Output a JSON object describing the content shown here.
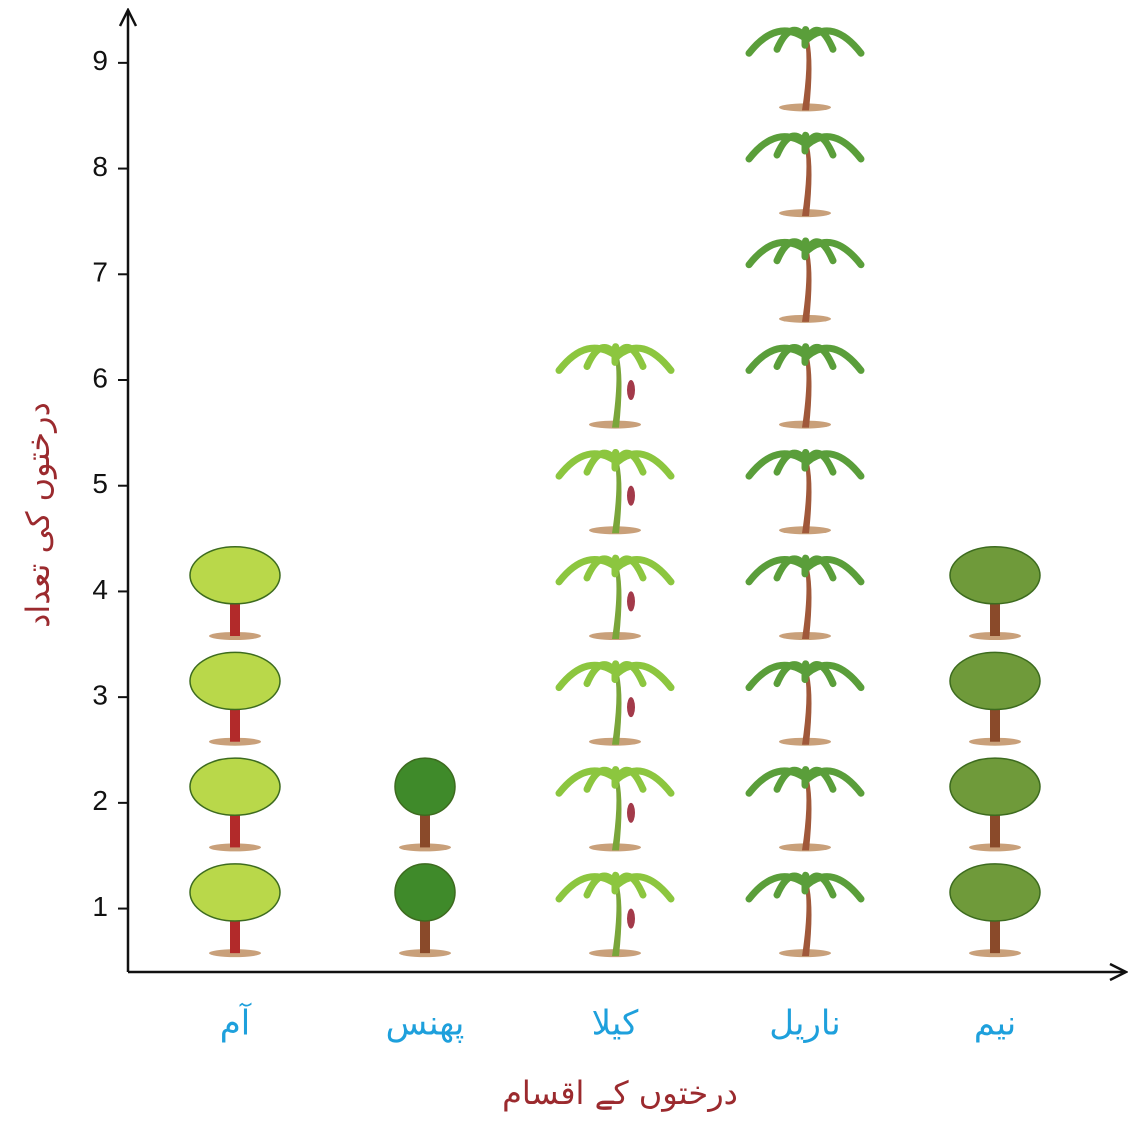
{
  "chart_data": {
    "type": "pictograph",
    "categories": [
      "آم",
      "پھنس",
      "کیلا",
      "ناریل",
      "نیم"
    ],
    "values": [
      4,
      2,
      6,
      9,
      4
    ],
    "colors": [
      "#b9d84a",
      "#3f8a2a",
      "#8cc63f",
      "#5a9e3a",
      "#6f9a3a"
    ],
    "x_label": "درختوں کے اقسام",
    "y_label": "درختوں کی تعداد",
    "ylim": [
      0.4,
      9.5
    ],
    "yticks": [
      1,
      2,
      3,
      4,
      5,
      6,
      7,
      8,
      9
    ]
  }
}
